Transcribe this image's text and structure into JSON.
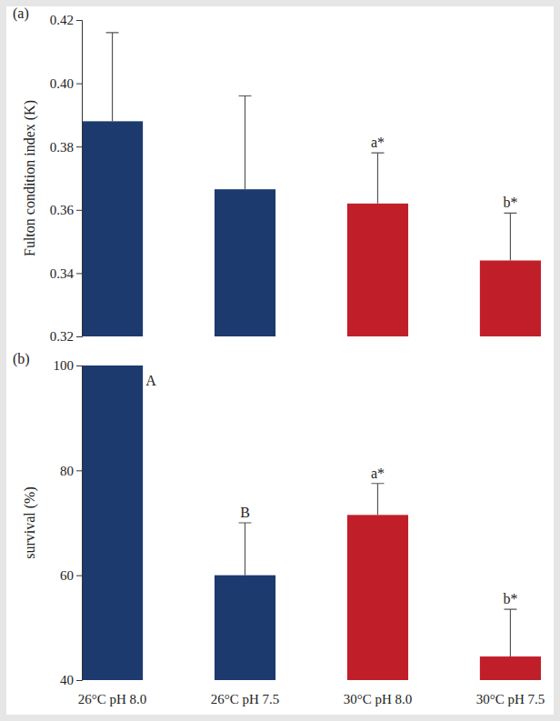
{
  "chart_data": [
    {
      "type": "bar",
      "title": "(a)",
      "y_label": "Fulton condition index (K)",
      "categories": [
        null,
        null,
        null,
        null
      ],
      "values": [
        0.388,
        0.3665,
        0.362,
        0.344
      ],
      "errors": [
        0.028,
        0.0295,
        0.016,
        0.015
      ],
      "annotations": [
        null,
        null,
        "a*",
        "b*"
      ],
      "colors": [
        "#1c3a6e",
        "#1c3a6e",
        "#c01f2a",
        "#c01f2a"
      ],
      "ylim": [
        0.32,
        0.42
      ],
      "yticks": [
        0.32,
        0.34,
        0.36,
        0.38,
        {
          "value": 0.4,
          "label": "0.40"
        },
        0.42
      ]
    },
    {
      "type": "bar",
      "title": "(b)",
      "y_label": "survival (%)",
      "categories": [
        "26°C pH 8.0",
        "26°C pH 7.5",
        "30°C pH 8.0",
        "30°C pH 7.5"
      ],
      "values": [
        100,
        60,
        71.5,
        44.5
      ],
      "errors": [
        null,
        10,
        6,
        9
      ],
      "annotations": [
        "A",
        "B",
        "a*",
        "b*"
      ],
      "colors": [
        "#1c3a6e",
        "#1c3a6e",
        "#c01f2a",
        "#c01f2a"
      ],
      "ylim": [
        40,
        100
      ],
      "yticks": [
        40,
        60,
        80,
        100
      ]
    }
  ]
}
